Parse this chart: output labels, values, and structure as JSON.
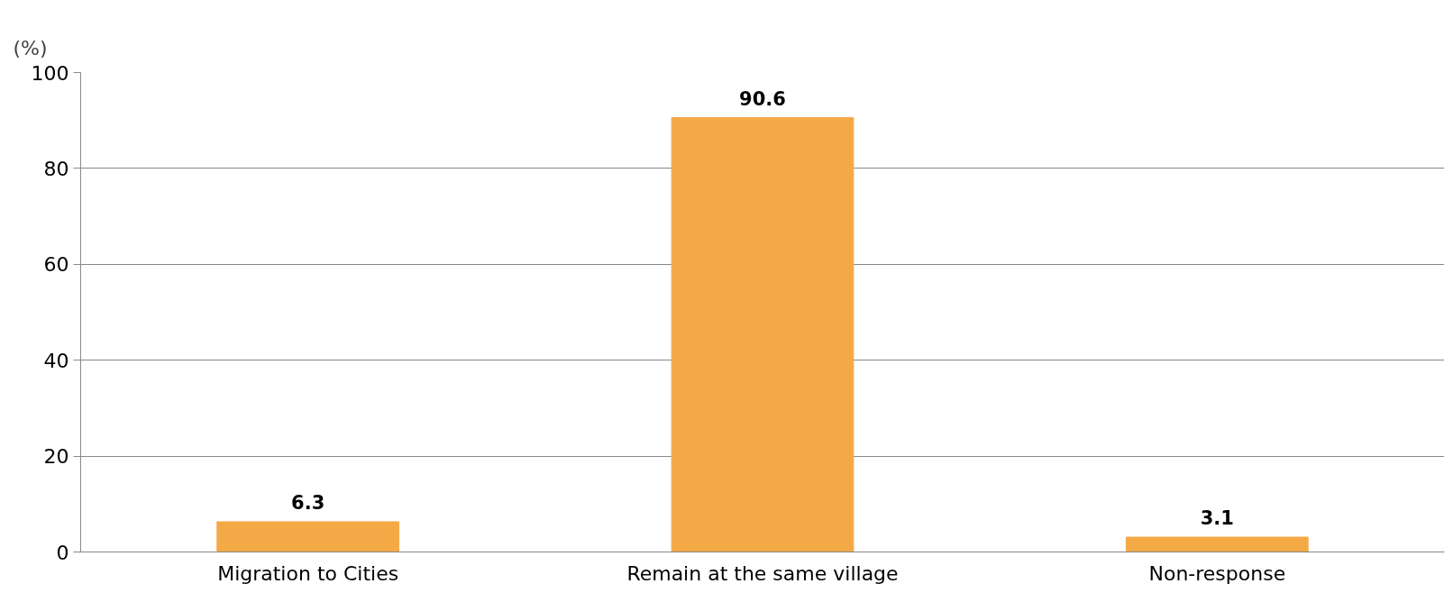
{
  "chart_data": {
    "type": "bar",
    "ylabel": "(%)",
    "categories": [
      "Migration to Cities",
      "Remain at the same village",
      "Non-response"
    ],
    "values": [
      6.3,
      90.6,
      3.1
    ],
    "color": "#f4a947",
    "ylim": [
      0,
      100
    ],
    "yticks": [
      0,
      20,
      40,
      60,
      80,
      100
    ],
    "grid": "y",
    "data_labels": true
  }
}
